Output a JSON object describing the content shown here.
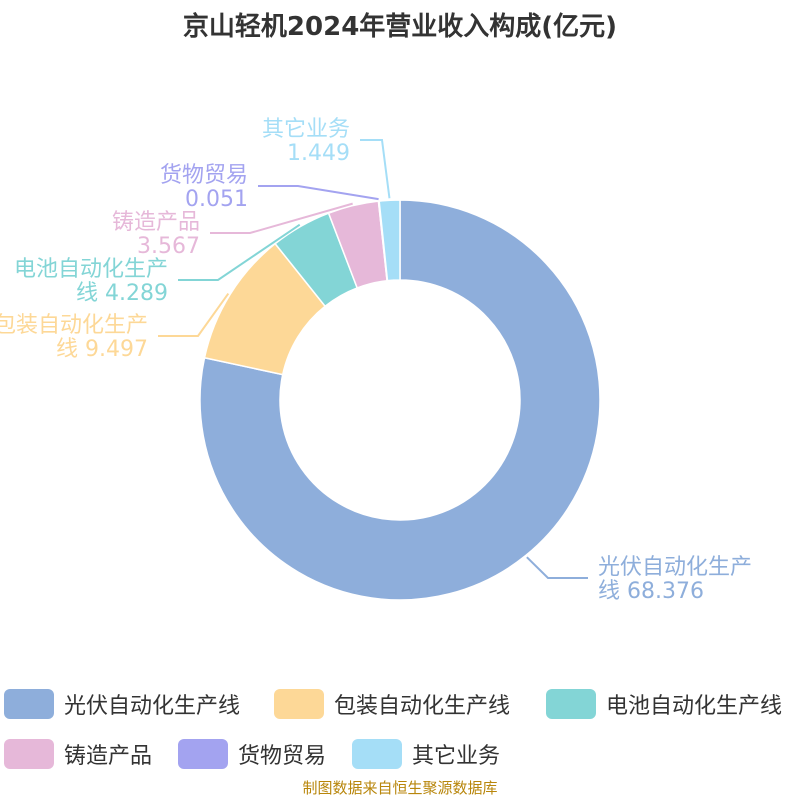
{
  "title": "京山轻机2024年营业收入构成(亿元)",
  "source": "制图数据来自恒生聚源数据库",
  "chart_data": {
    "type": "pie",
    "categories": [
      "光伏自动化生产线",
      "包装自动化生产线",
      "电池自动化生产线",
      "铸造产品",
      "货物贸易",
      "其它业务"
    ],
    "values": [
      68.376,
      9.497,
      4.289,
      3.567,
      0.051,
      1.449
    ],
    "value_labels": [
      "68.376",
      "9.497",
      "4.289",
      "3.567",
      "0.051",
      "1.449"
    ],
    "colors": [
      "#8eaedb",
      "#fdd897",
      "#83d5d6",
      "#e6b8d9",
      "#a3a3f0",
      "#a5def7"
    ],
    "donut": true,
    "legend_position": "bottom"
  },
  "callouts": [
    {
      "line1": "光伏自动化生产",
      "line2": "线 68.376"
    },
    {
      "line1": "包装自动化生产",
      "line2": "线 9.497"
    },
    {
      "line1": "电池自动化生产",
      "line2": "线 4.289"
    },
    {
      "line1": "铸造产品",
      "line2": "3.567"
    },
    {
      "line1": "货物贸易",
      "line2": "0.051"
    },
    {
      "line1": "其它业务",
      "line2": "1.449"
    }
  ]
}
